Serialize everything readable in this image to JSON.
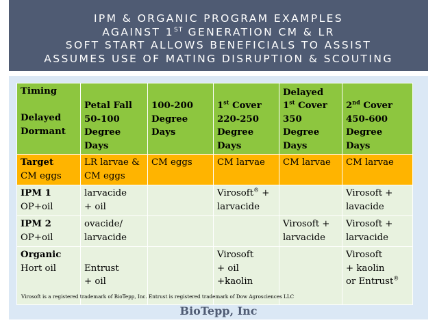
{
  "header": {
    "line1": "IPM & ORGANIC PROGRAM EXAMPLES",
    "line2_pre": "AGAINST 1",
    "line2_sup": "ST",
    "line2_post": " GENERATION CM & LR",
    "line3": "SOFT START ALLOWS BENEFICIALS TO ASSIST",
    "line4": "ASSUMES USE OF MATING DISRUPTION & SCOUTING"
  },
  "table": {
    "head": {
      "timing_label": "Timing",
      "timing_value_1": "Delayed",
      "timing_value_2": "Dormant",
      "petal_fall": [
        "Petal Fall",
        "50-100",
        "Degree",
        "Days"
      ],
      "c3": [
        "100-200",
        "Degree",
        "Days"
      ],
      "c4_pre": "1",
      "c4_sup": "st",
      "c4_post": " Cover",
      "c4_rest": [
        "220-250",
        "Degree",
        "Days"
      ],
      "c5_top": "Delayed",
      "c5_pre": "1",
      "c5_sup": "st",
      "c5_post": " Cover",
      "c5_rest": [
        "350",
        "Degree",
        "Days"
      ],
      "c6_pre": "2",
      "c6_sup": "nd",
      "c6_post": " Cover",
      "c6_rest": [
        "450-600",
        "Degree",
        "Days"
      ]
    },
    "target": {
      "label": "Target",
      "sub": "CM eggs",
      "c2a": "LR larvae &",
      "c2b": "CM eggs",
      "c3": "CM eggs",
      "c4": "CM larvae",
      "c5": "CM larvae",
      "c6": "CM larvae"
    },
    "ipm1": {
      "label": "IPM 1",
      "sub": "OP+oil",
      "c2a": "larvacide",
      "c2b": "+ oil",
      "c4a_pre": "Virosoft",
      "c4a_sup": "®",
      "c4a_post": " +",
      "c4b": "larvacide",
      "c6a": "Virosoft +",
      "c6b": "lavacide"
    },
    "ipm2": {
      "label": "IPM 2",
      "sub": "OP+oil",
      "c2a": "ovacide/",
      "c2b": "larvacide",
      "c5a": "Virosoft +",
      "c5b": "larvacide",
      "c6a": "Virosoft +",
      "c6b": "larvacide"
    },
    "organic": {
      "label": "Organic",
      "sub": "Hort oil",
      "c2a": "Entrust",
      "c2b": "+ oil",
      "c4a": "Virosoft",
      "c4b": "+ oil",
      "c4c": "+kaolin",
      "c6a": "Virosoft",
      "c6b": "+ kaolin",
      "c6c_pre": "or Entrust",
      "c6c_sup": "®"
    }
  },
  "footnote": "Virosoft is a registered trademark of BioTepp, Inc. Entrust is registered trademark of Dow Agrosciences LLC",
  "brand": "BioTepp, Inc"
}
